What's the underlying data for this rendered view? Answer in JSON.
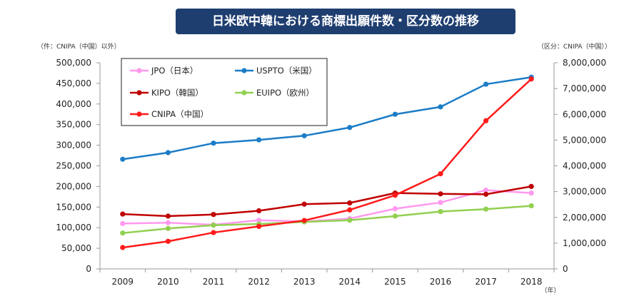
{
  "chart_data": {
    "type": "line",
    "title": "日米欧中韓における商標出願件数・区分数の推移",
    "left_axis_label": "（件：CNIPA（中国）以外）",
    "right_axis_label": "（区分：CNIPA（中国））",
    "xlabel_unit": "（年）",
    "categories": [
      "2009",
      "2010",
      "2011",
      "2012",
      "2013",
      "2014",
      "2015",
      "2016",
      "2017",
      "2018"
    ],
    "left_ylim": [
      0,
      500000
    ],
    "left_ticks": [
      "0",
      "50,000",
      "100,000",
      "150,000",
      "200,000",
      "250,000",
      "300,000",
      "350,000",
      "400,000",
      "450,000",
      "500,000"
    ],
    "right_ylim": [
      0,
      8000000
    ],
    "right_ticks": [
      "0",
      "1,000,000",
      "2,000,000",
      "3,000,000",
      "4,000,000",
      "5,000,000",
      "6,000,000",
      "7,000,000",
      "8,000,000"
    ],
    "series": [
      {
        "name": "JPO（日本）",
        "color": "#ff99ee",
        "axis": "left",
        "values": [
          110000,
          112000,
          107000,
          118000,
          115000,
          122000,
          146000,
          161000,
          191000,
          184000
        ]
      },
      {
        "name": "USPTO（米国）",
        "color": "#1c7cc6",
        "axis": "left",
        "values": [
          266000,
          282000,
          305000,
          313000,
          323000,
          343000,
          375000,
          393000,
          448000,
          465000
        ]
      },
      {
        "name": "KIPO（韓国）",
        "color": "#c00000",
        "axis": "left",
        "values": [
          133000,
          128000,
          132000,
          141000,
          157000,
          160000,
          184000,
          182000,
          181000,
          200000
        ]
      },
      {
        "name": "EUIPO（欧州）",
        "color": "#92d050",
        "axis": "left",
        "values": [
          87000,
          98000,
          106000,
          109000,
          114000,
          118000,
          128000,
          139000,
          145000,
          153000
        ]
      },
      {
        "name": "CNIPA（中国）",
        "color": "#ff1a1a",
        "axis": "right",
        "values": [
          830000,
          1070000,
          1410000,
          1650000,
          1880000,
          2290000,
          2860000,
          3690000,
          5750000,
          7370000
        ]
      }
    ]
  }
}
